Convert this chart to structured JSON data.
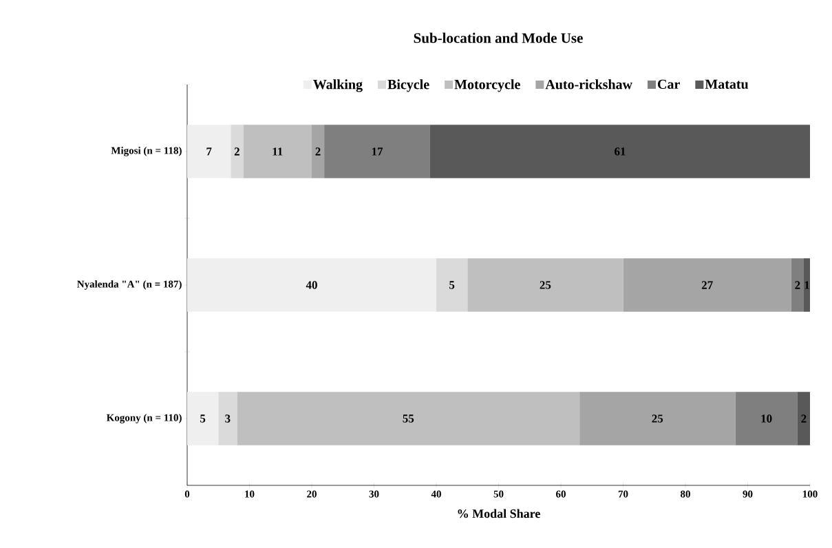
{
  "chart_data": {
    "type": "bar",
    "orientation": "horizontal",
    "stacked": true,
    "title": "Sub-location and Mode Use",
    "xlabel": "% Modal Share",
    "categories": [
      "Migosi (n = 118)",
      "Nyalenda \"A\" (n = 187)",
      "Kogony (n = 110)"
    ],
    "series": [
      {
        "name": "Walking",
        "color": "#efefef",
        "values": [
          7,
          40,
          5
        ]
      },
      {
        "name": "Bicycle",
        "color": "#dadada",
        "values": [
          2,
          5,
          3
        ]
      },
      {
        "name": "Motorcycle",
        "color": "#bfbfbf",
        "values": [
          11,
          25,
          55
        ]
      },
      {
        "name": "Auto-rickshaw",
        "color": "#a5a5a5",
        "values": [
          2,
          27,
          25
        ]
      },
      {
        "name": "Car",
        "color": "#7f7f7f",
        "values": [
          17,
          2,
          10
        ]
      },
      {
        "name": "Matatu",
        "color": "#595959",
        "values": [
          61,
          1,
          2
        ]
      }
    ],
    "xlim": [
      0,
      100
    ],
    "xticks": [
      0,
      10,
      20,
      30,
      40,
      50,
      60,
      70,
      80,
      90,
      100
    ],
    "data_labels": true,
    "legend": "top",
    "grid": false
  }
}
